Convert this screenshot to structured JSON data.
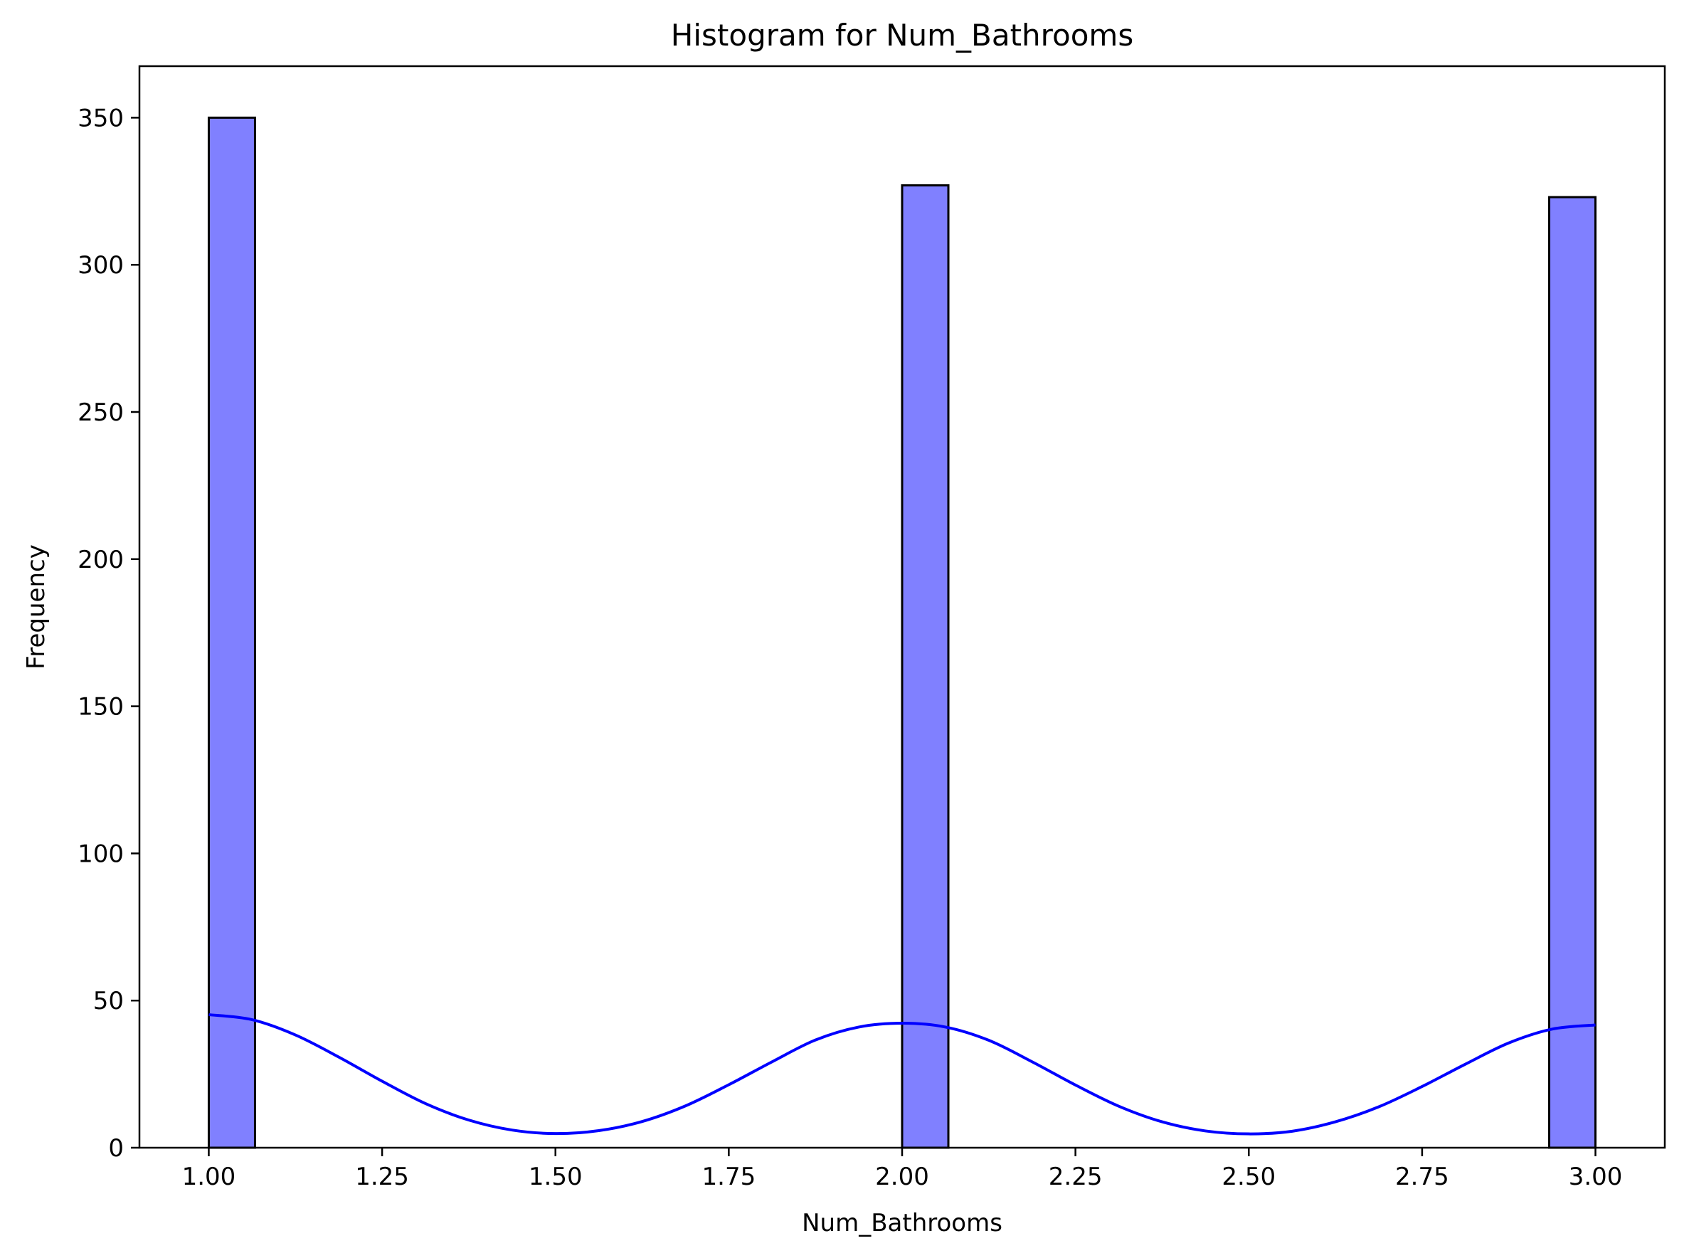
{
  "chart_data": {
    "type": "bar",
    "title": "Histogram for Num_Bathrooms",
    "xlabel": "Num_Bathrooms",
    "ylabel": "Frequency",
    "xlim": [
      0.9,
      3.1
    ],
    "ylim": [
      0,
      367.5
    ],
    "xticks": [
      1.0,
      1.25,
      1.5,
      1.75,
      2.0,
      2.25,
      2.5,
      2.75,
      3.0
    ],
    "xtick_labels": [
      "1.00",
      "1.25",
      "1.50",
      "1.75",
      "2.00",
      "2.25",
      "2.50",
      "2.75",
      "3.00"
    ],
    "yticks": [
      0,
      50,
      100,
      150,
      200,
      250,
      300,
      350
    ],
    "ytick_labels": [
      "0",
      "50",
      "100",
      "150",
      "200",
      "250",
      "300",
      "350"
    ],
    "grid": false,
    "bars": [
      {
        "x0": 1.0,
        "x1": 1.0667,
        "value": 350
      },
      {
        "x0": 2.0,
        "x1": 2.0667,
        "value": 327
      },
      {
        "x0": 2.9333,
        "x1": 3.0,
        "value": 323
      }
    ],
    "kde": {
      "x": [
        1.0,
        1.0625,
        1.125,
        1.1875,
        1.25,
        1.3125,
        1.375,
        1.4375,
        1.5,
        1.5625,
        1.625,
        1.6875,
        1.75,
        1.8125,
        1.875,
        1.9375,
        2.0,
        2.0625,
        2.125,
        2.1875,
        2.25,
        2.3125,
        2.375,
        2.4375,
        2.5,
        2.5625,
        2.625,
        2.6875,
        2.75,
        2.8125,
        2.875,
        2.9375,
        3.0
      ],
      "y": [
        45.2,
        43.5,
        38.3,
        30.8,
        22.6,
        15.0,
        9.4,
        6.0,
        4.8,
        5.8,
        8.9,
        14.2,
        21.4,
        29.2,
        36.6,
        41.0,
        42.3,
        41.0,
        36.5,
        29.2,
        21.3,
        14.1,
        8.8,
        5.7,
        4.7,
        5.6,
        8.8,
        13.9,
        20.8,
        28.4,
        35.6,
        40.3,
        41.7
      ]
    },
    "colors": {
      "bar_fill": "#8080ff",
      "bar_edge": "#000000",
      "kde_line": "#0000ff"
    }
  }
}
